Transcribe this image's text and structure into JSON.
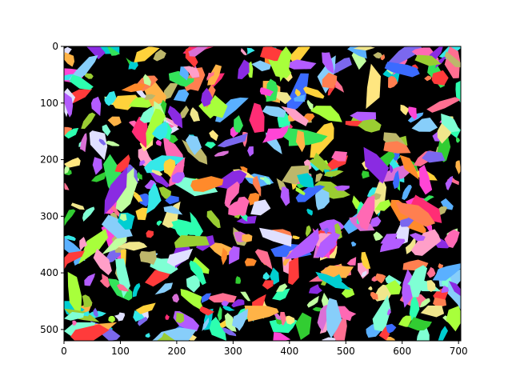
{
  "image_kind": "segmentation mask image on matplotlib axes",
  "background_color": "#000000",
  "axis_color": "#000000",
  "x_axis": {
    "range": [
      0,
      704
    ],
    "ticks": [
      0,
      100,
      200,
      300,
      400,
      500,
      600,
      700
    ]
  },
  "y_axis": {
    "range": [
      0,
      520
    ],
    "inverted": true,
    "ticks": [
      0,
      100,
      200,
      300,
      400,
      500
    ]
  },
  "palette": [
    "#ff3b3b",
    "#34e35a",
    "#3b6bff",
    "#ffd23b",
    "#ff45d6",
    "#35e8e8",
    "#ff8a2b",
    "#a8ff3b",
    "#b35cff",
    "#ff9fc8",
    "#7fffd4",
    "#ffe680",
    "#5ab0ff",
    "#c0ffa0",
    "#ff6f91",
    "#9acd32",
    "#e0e0ff",
    "#ff2d75",
    "#2dffb0",
    "#ffb347",
    "#8a2be2",
    "#00ced1",
    "#f0e68c",
    "#ff69b4",
    "#32cd32",
    "#da70d6",
    "#87cefa",
    "#bdb76b",
    "#ff7f50",
    "#7b68ee"
  ]
}
